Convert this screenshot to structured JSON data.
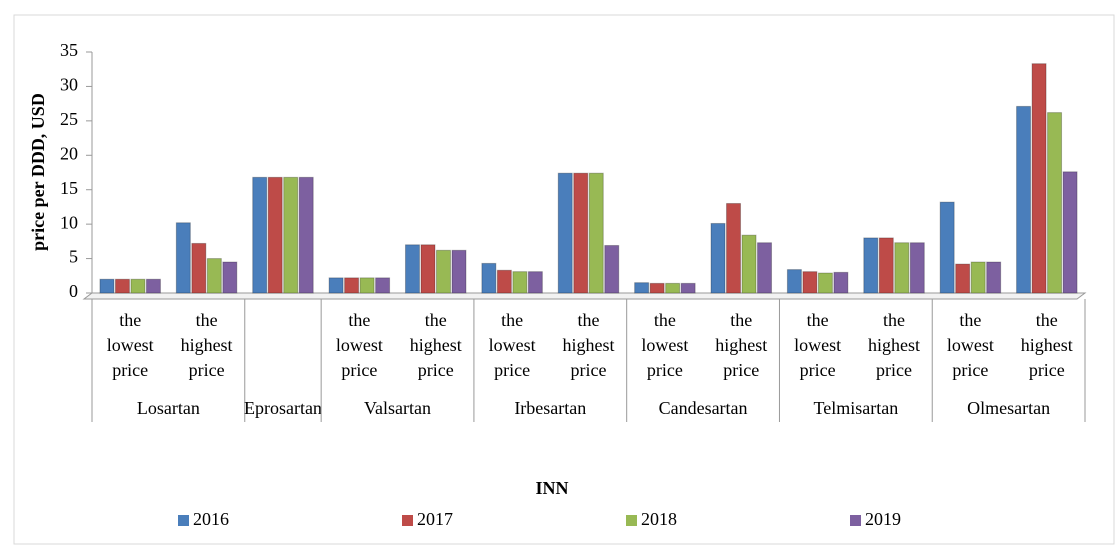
{
  "chart_data": {
    "type": "bar",
    "y_label": "price per DDD, USD",
    "x_label": "INN",
    "groups": [
      {
        "name": "Losartan",
        "categories": [
          "the lowest price",
          "the highest price"
        ]
      },
      {
        "name": "Eprosartan",
        "categories": [
          null
        ]
      },
      {
        "name": "Valsartan",
        "categories": [
          "the lowest price",
          "the highest price"
        ]
      },
      {
        "name": "Irbesartan",
        "categories": [
          "the lowest price",
          "the highest price"
        ]
      },
      {
        "name": "Candesartan",
        "categories": [
          "the lowest price",
          "the highest price"
        ]
      },
      {
        "name": "Telmisartan",
        "categories": [
          "the lowest price",
          "the highest price"
        ]
      },
      {
        "name": "Olmesartan",
        "categories": [
          "the lowest price",
          "the highest price"
        ]
      }
    ],
    "series": [
      {
        "name": "2016",
        "color": "#4a7ebb",
        "values": [
          2,
          10.2,
          16.8,
          2.2,
          7,
          4.3,
          17.4,
          1.5,
          10.1,
          3.4,
          8,
          13.2,
          27.1
        ]
      },
      {
        "name": "2017",
        "color": "#be4b48",
        "values": [
          2,
          7.2,
          16.8,
          2.2,
          7,
          3.3,
          17.4,
          1.4,
          13,
          3.1,
          8,
          4.2,
          33.3
        ]
      },
      {
        "name": "2018",
        "color": "#98b954",
        "values": [
          2,
          5,
          16.8,
          2.2,
          6.2,
          3.1,
          17.4,
          1.4,
          8.4,
          2.9,
          7.3,
          4.5,
          26.2
        ]
      },
      {
        "name": "2019",
        "color": "#7d60a0",
        "values": [
          2,
          4.5,
          16.8,
          2.2,
          6.2,
          3.1,
          6.9,
          1.4,
          7.3,
          3,
          7.3,
          4.5,
          17.6
        ]
      }
    ],
    "ylim": [
      0,
      35
    ],
    "yticks": [
      0,
      5,
      10,
      15,
      20,
      25,
      30,
      35
    ],
    "legend": "bottom"
  }
}
